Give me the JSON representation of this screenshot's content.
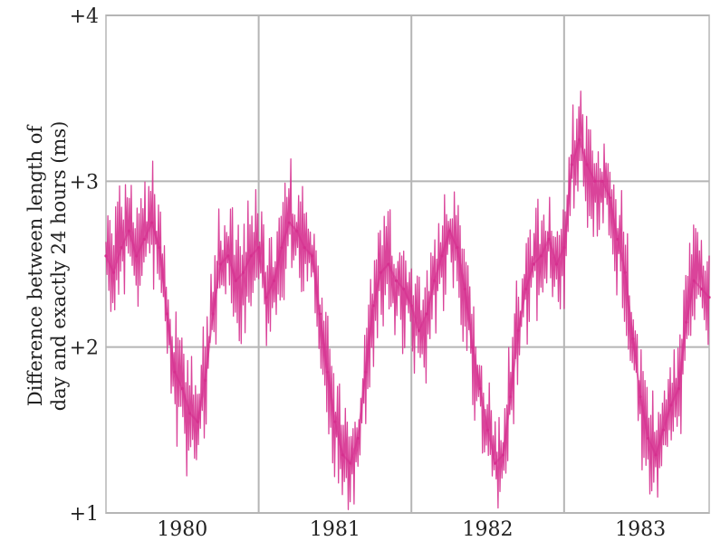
{
  "chart_data": {
    "type": "line",
    "title": "",
    "ylabel_line1": "Difference between length of",
    "ylabel_line2": "day and exactly 24 hours (ms)",
    "xlabel": "",
    "y_ticks": [
      {
        "value": 4,
        "label": "+4"
      },
      {
        "value": 3,
        "label": "+3"
      },
      {
        "value": 2,
        "label": "+2"
      },
      {
        "value": 1,
        "label": "+1"
      }
    ],
    "x_ticks": [
      {
        "value": 1980,
        "label": "1980"
      },
      {
        "value": 1981,
        "label": "1981"
      },
      {
        "value": 1982,
        "label": "1982"
      },
      {
        "value": 1983,
        "label": "1983"
      }
    ],
    "xlim": [
      1979.5,
      1983.45
    ],
    "ylim": [
      1,
      4
    ],
    "grid": true,
    "color": "#d6308f",
    "series": [
      {
        "x": [
          1979.5,
          1979.55,
          1979.6,
          1979.65,
          1979.7,
          1979.75,
          1979.8,
          1979.85,
          1979.9,
          1979.95,
          1980.0,
          1980.05,
          1980.1,
          1980.15,
          1980.2,
          1980.25,
          1980.3,
          1980.35,
          1980.4,
          1980.45,
          1980.5,
          1980.55,
          1980.6,
          1980.65,
          1980.7,
          1980.75,
          1980.8,
          1980.85,
          1980.9,
          1980.95,
          1981.0,
          1981.05,
          1981.1,
          1981.15,
          1981.2,
          1981.25,
          1981.3,
          1981.35,
          1981.4,
          1981.45,
          1981.5,
          1981.55,
          1981.6,
          1981.65,
          1981.7,
          1981.75,
          1981.8,
          1981.85,
          1981.9,
          1981.95,
          1982.0,
          1982.05,
          1982.1,
          1982.15,
          1982.2,
          1982.25,
          1982.3,
          1982.35,
          1982.4,
          1982.45,
          1982.5,
          1982.55,
          1982.6,
          1982.65,
          1982.7,
          1982.75,
          1982.8,
          1982.85,
          1982.9,
          1982.95,
          1983.0,
          1983.05,
          1983.1,
          1983.15,
          1983.2,
          1983.25,
          1983.3,
          1983.35,
          1983.4,
          1983.45
        ],
        "y": [
          2.55,
          2.45,
          2.6,
          2.7,
          2.55,
          2.65,
          2.75,
          2.6,
          2.2,
          1.85,
          1.75,
          1.6,
          1.55,
          1.8,
          2.2,
          2.5,
          2.55,
          2.4,
          2.45,
          2.55,
          2.6,
          2.3,
          2.4,
          2.6,
          2.75,
          2.7,
          2.6,
          2.55,
          2.2,
          1.85,
          1.55,
          1.35,
          1.3,
          1.45,
          1.85,
          2.25,
          2.45,
          2.5,
          2.4,
          2.35,
          2.25,
          2.1,
          2.2,
          2.4,
          2.55,
          2.7,
          2.6,
          2.35,
          2.0,
          1.75,
          1.5,
          1.3,
          1.35,
          1.7,
          2.1,
          2.35,
          2.5,
          2.55,
          2.65,
          2.5,
          2.6,
          3.1,
          3.25,
          3.1,
          3.0,
          3.0,
          2.9,
          2.65,
          2.45,
          2.05,
          1.7,
          1.45,
          1.35,
          1.5,
          1.65,
          1.75,
          2.15,
          2.4,
          2.35,
          2.3
        ]
      }
    ]
  }
}
